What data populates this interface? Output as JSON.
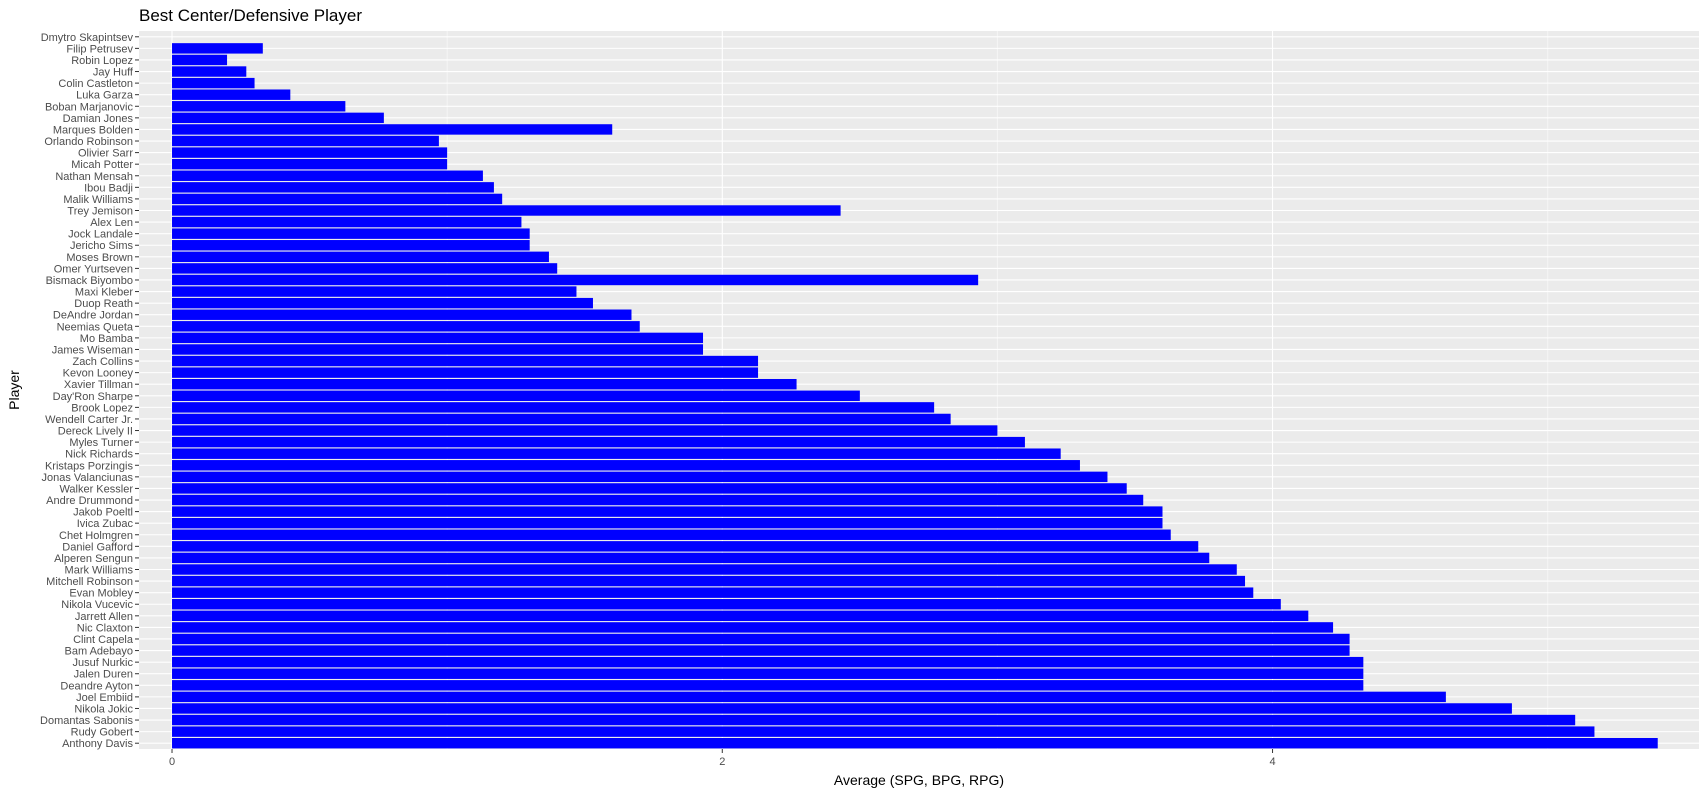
{
  "colors": {
    "panel_background": "#ebebeb",
    "grid_major": "#ffffff",
    "grid_minor": "#f5f5f5",
    "bar_fill": "#0000ff",
    "tick_text": "#4d4d4d",
    "tick_mark": "#333333"
  },
  "chart_data": {
    "type": "bar",
    "orientation": "horizontal",
    "title": "Best Center/Defensive Player",
    "xlabel": "Average (SPG, BPG, RPG)",
    "ylabel": "Player",
    "xlim": [
      -0.12,
      5.55
    ],
    "x_ticks": [
      0,
      2,
      4
    ],
    "x_tick_labels": [
      "0",
      "2",
      "4"
    ],
    "grid": true,
    "legend": "none",
    "categories": [
      "Dmytro Skapintsev",
      "Filip Petrusev",
      "Robin Lopez",
      "Jay Huff",
      "Colin Castleton",
      "Luka Garza",
      "Boban Marjanovic",
      "Damian Jones",
      "Marques Bolden",
      "Orlando Robinson",
      "Olivier Sarr",
      "Micah Potter",
      "Nathan Mensah",
      "Ibou Badji",
      "Malik Williams",
      "Trey Jemison",
      "Alex Len",
      "Jock Landale",
      "Jericho Sims",
      "Moses Brown",
      "Omer Yurtseven",
      "Bismack Biyombo",
      "Maxi Kleber",
      "Duop Reath",
      "DeAndre Jordan",
      "Neemias Queta",
      "Mo Bamba",
      "James Wiseman",
      "Zach Collins",
      "Kevon Looney",
      "Xavier Tillman",
      "Day'Ron Sharpe",
      "Brook Lopez",
      "Wendell Carter Jr.",
      "Dereck Lively II",
      "Myles Turner",
      "Nick Richards",
      "Kristaps Porzingis",
      "Jonas Valanciunas",
      "Walker Kessler",
      "Andre Drummond",
      "Jakob Poeltl",
      "Ivica Zubac",
      "Chet Holmgren",
      "Daniel Gafford",
      "Alperen Sengun",
      "Mark Williams",
      "Mitchell Robinson",
      "Evan Mobley",
      "Nikola Vucevic",
      "Jarrett Allen",
      "Nic Claxton",
      "Clint Capela",
      "Bam Adebayo",
      "Jusuf Nurkic",
      "Jalen Duren",
      "Deandre Ayton",
      "Joel Embiid",
      "Nikola Jokic",
      "Domantas Sabonis",
      "Rudy Gobert",
      "Anthony Davis"
    ],
    "values": [
      0.0,
      0.33,
      0.2,
      0.27,
      0.3,
      0.43,
      0.63,
      0.77,
      1.6,
      0.97,
      1.0,
      1.0,
      1.13,
      1.17,
      1.2,
      2.43,
      1.27,
      1.3,
      1.3,
      1.37,
      1.4,
      2.93,
      1.47,
      1.53,
      1.67,
      1.7,
      1.93,
      1.93,
      2.13,
      2.13,
      2.27,
      2.5,
      2.77,
      2.83,
      3.0,
      3.1,
      3.23,
      3.3,
      3.4,
      3.47,
      3.53,
      3.6,
      3.6,
      3.63,
      3.73,
      3.77,
      3.87,
      3.9,
      3.93,
      4.03,
      4.13,
      4.22,
      4.28,
      4.28,
      4.33,
      4.33,
      4.33,
      4.63,
      4.87,
      5.1,
      5.17,
      5.4
    ]
  }
}
